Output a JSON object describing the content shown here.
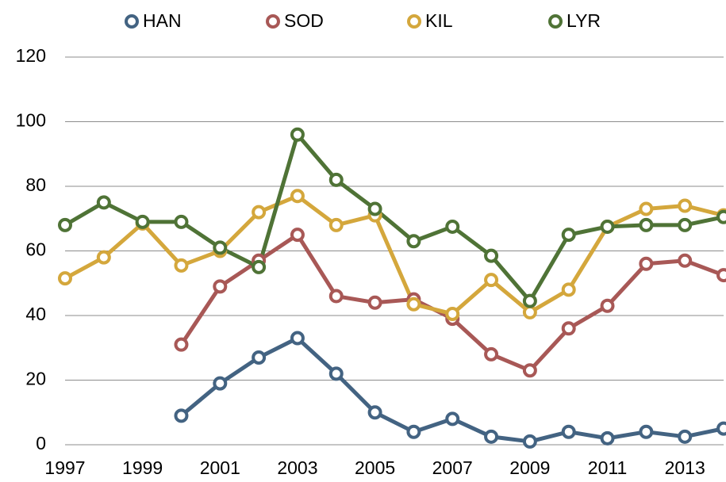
{
  "chart_data": {
    "type": "line",
    "x": [
      1997,
      1998,
      1999,
      2000,
      2001,
      2002,
      2003,
      2004,
      2005,
      2006,
      2007,
      2008,
      2009,
      2010,
      2011,
      2012,
      2013,
      2014
    ],
    "series": [
      {
        "name": "HAN",
        "color": "#436382",
        "values": [
          null,
          null,
          null,
          9,
          19,
          27,
          33,
          22,
          10,
          4,
          8,
          2.5,
          1,
          4,
          2,
          4,
          2.5,
          5
        ]
      },
      {
        "name": "SOD",
        "color": "#a85856",
        "values": [
          null,
          null,
          null,
          31,
          49,
          57,
          65,
          46,
          44,
          45,
          39,
          28,
          23,
          36,
          43,
          56,
          57,
          52.5
        ]
      },
      {
        "name": "KIL",
        "color": "#d4a73c",
        "values": [
          51.5,
          58,
          68.5,
          55.5,
          60,
          72,
          77,
          68,
          71,
          43.5,
          40.5,
          51,
          41,
          48,
          67.5,
          73,
          74,
          71
        ]
      },
      {
        "name": "LYR",
        "color": "#4f7336",
        "values": [
          68,
          75,
          69,
          69,
          61,
          55,
          96,
          82,
          73,
          63,
          67.5,
          58.5,
          44.5,
          65,
          67.5,
          68,
          68,
          70.5
        ]
      }
    ],
    "xlim": [
      1997,
      2014
    ],
    "xticks": [
      1997,
      1999,
      2001,
      2003,
      2005,
      2007,
      2009,
      2011,
      2013
    ],
    "ylim": [
      0,
      120
    ],
    "yticks": [
      0,
      20,
      40,
      60,
      80,
      100,
      120
    ],
    "grid": true,
    "legend": "top"
  }
}
